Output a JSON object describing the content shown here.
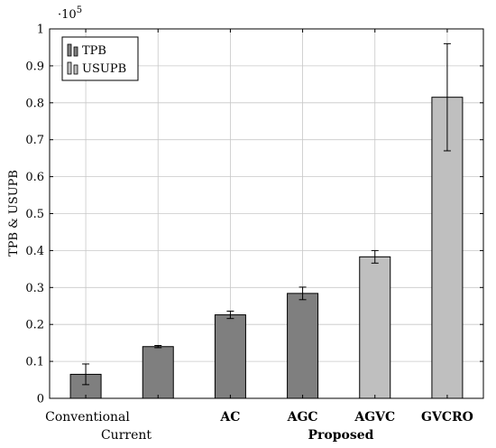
{
  "chart_data": {
    "type": "bar",
    "categories": [
      "Conventional",
      "Current",
      "AC",
      "AGC",
      "AGVC",
      "GVCRO"
    ],
    "category_bold": [
      false,
      false,
      true,
      true,
      true,
      true
    ],
    "group_labels": [
      "Current",
      "Proposed"
    ],
    "series": [
      {
        "name": "TPB",
        "color": "#7f7f7f",
        "values": [
          0.065,
          0.14,
          0.226,
          0.284,
          null,
          null
        ],
        "errors": [
          0.028,
          0.003,
          0.01,
          0.017,
          null,
          null
        ]
      },
      {
        "name": "USUPB",
        "color": "#bfbfbf",
        "values": [
          null,
          null,
          null,
          null,
          0.383,
          0.815
        ],
        "errors": [
          null,
          null,
          null,
          null,
          0.017,
          0.145
        ]
      }
    ],
    "ylabel": "TPB & USUPB",
    "y_exponent_label": "·10",
    "y_exponent_power": "5",
    "ylim": [
      0,
      1
    ],
    "yticks": [
      "0",
      "0.1",
      "0.2",
      "0.3",
      "0.4",
      "0.5",
      "0.6",
      "0.7",
      "0.8",
      "0.9",
      "1"
    ],
    "grid": true,
    "legend_position": "top-left"
  }
}
